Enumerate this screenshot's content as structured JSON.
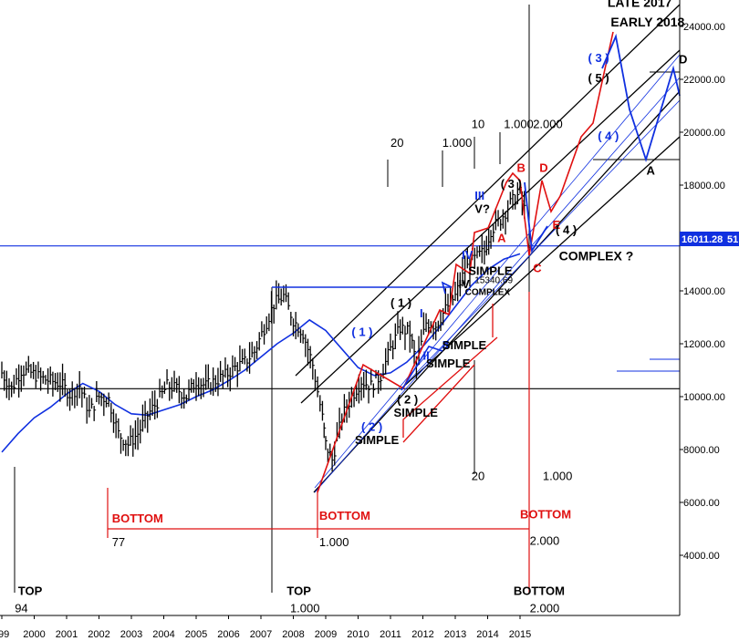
{
  "colors": {
    "price": "#000000",
    "moving_average": "#1030e0",
    "channel": "#000000",
    "red_path": "#e01010",
    "blue_path": "#1030e0",
    "price_tag_bg": "#1030e0",
    "price_tag_text": "#ffffff"
  },
  "price_tag": "16011.28",
  "price_tag_overflow": "51",
  "chart_data": {
    "type": "line",
    "title": "",
    "xlabel": "",
    "ylabel": "",
    "x_tick_labels": [
      "99",
      "2000",
      "2001",
      "2002",
      "2003",
      "2004",
      "2005",
      "2006",
      "2007",
      "2008",
      "2009",
      "2010",
      "2011",
      "2012",
      "2013",
      "2014",
      "2015"
    ],
    "y_tick_labels": [
      "24000.00",
      "22000.00",
      "20000.00",
      "18000.00",
      "16000.00",
      "14000.00",
      "12000.00",
      "10000.00",
      "8000.00",
      "6000.00",
      "4000.00"
    ],
    "ylim": [
      2000,
      25500
    ],
    "xlim": [
      1998.95,
      2020.0
    ],
    "grid": false,
    "series": [
      {
        "type": "ohlc",
        "x": [
          1999.0,
          1999.3,
          1999.6,
          1999.9,
          2000.2,
          2000.5,
          2000.8,
          2001.1,
          2001.4,
          2001.7,
          2002.0,
          2002.3,
          2002.6,
          2002.9,
          2003.2,
          2003.5,
          2003.8,
          2004.1,
          2004.4,
          2004.7,
          2005.0,
          2005.3,
          2005.6,
          2005.9,
          2006.2,
          2006.5,
          2006.8,
          2007.1,
          2007.4,
          2007.7,
          2008.0,
          2008.3,
          2008.6,
          2008.9,
          2009.0,
          2009.2,
          2009.5,
          2009.8,
          2010.1,
          2010.4,
          2010.7,
          2011.0,
          2011.3,
          2011.6,
          2011.8,
          2012.1,
          2012.4,
          2012.7,
          2013.0,
          2013.3,
          2013.6,
          2013.9,
          2014.1,
          2014.4,
          2014.7,
          2015.0,
          2015.2
        ],
        "values": [
          10900,
          10300,
          11000,
          10900,
          10700,
          10600,
          10500,
          10100,
          10400,
          9400,
          10000,
          9900,
          8600,
          8200,
          8600,
          9300,
          9800,
          10400,
          10300,
          10000,
          10600,
          10400,
          10600,
          10800,
          11100,
          11300,
          11700,
          12600,
          13500,
          13800,
          12900,
          12400,
          11200,
          9200,
          8200,
          7600,
          9200,
          10000,
          10600,
          10400,
          10800,
          11800,
          12600,
          12400,
          11200,
          12800,
          12700,
          13300,
          13800,
          14800,
          15200,
          15500,
          16300,
          16700,
          17300,
          17700,
          16800
        ]
      },
      {
        "name": "",
        "type": "moving_average",
        "x": [
          1999.0,
          1999.5,
          2000.0,
          2000.5,
          2001.0,
          2001.5,
          2002.0,
          2002.5,
          2003.0,
          2003.5,
          2004.0,
          2004.5,
          2005.0,
          2005.5,
          2006.0,
          2006.5,
          2007.0,
          2007.5,
          2008.0,
          2008.5,
          2009.0,
          2009.5,
          2010.0,
          2010.5,
          2011.0,
          2011.5,
          2012.0,
          2012.5,
          2013.0,
          2013.5,
          2014.0,
          2014.5,
          2015.0
        ],
        "values": [
          7900,
          8600,
          9200,
          9600,
          10100,
          10500,
          10200,
          9700,
          9350,
          9300,
          9500,
          9700,
          10000,
          10250,
          10600,
          11000,
          11500,
          12000,
          12400,
          12900,
          12500,
          11800,
          11100,
          10800,
          10900,
          11300,
          11900,
          12600,
          13400,
          14200,
          14800,
          15200,
          15400
        ]
      }
    ],
    "annotations": [
      {
        "text": "LATE 2017",
        "x": 2017.7,
        "y": 24750,
        "color": "#000000"
      },
      {
        "text": "EARLY 2018",
        "x": 2017.8,
        "y": 24000,
        "color": "#000000"
      },
      {
        "text": "( 3 )",
        "x": 2017.1,
        "y": 22650,
        "color": "#1030e0"
      },
      {
        "text": "( 5 )",
        "x": 2017.1,
        "y": 21900,
        "color": "#000000"
      },
      {
        "text": "( 4 )",
        "x": 2017.4,
        "y": 19700,
        "color": "#1030e0"
      },
      {
        "text": "D",
        "x": 2019.9,
        "y": 22600,
        "color": "#000000"
      },
      {
        "text": "A",
        "x": 2018.9,
        "y": 18400,
        "color": "#000000"
      },
      {
        "text": "20",
        "x": 2011.0,
        "y": 19450,
        "color": "#000000"
      },
      {
        "text": "1.000",
        "x": 2012.6,
        "y": 19450,
        "color": "#000000"
      },
      {
        "text": "10",
        "x": 2013.5,
        "y": 20150,
        "color": "#000000"
      },
      {
        "text": "1.000",
        "x": 2014.5,
        "y": 20150,
        "color": "#000000"
      },
      {
        "text": "2.000",
        "x": 2015.4,
        "y": 20150,
        "color": "#000000"
      },
      {
        "text": "( 3 )",
        "x": 2014.4,
        "y": 17900,
        "color": "#000000"
      },
      {
        "text": "B",
        "x": 2014.9,
        "y": 18500,
        "color": "#e01010"
      },
      {
        "text": "D",
        "x": 2015.6,
        "y": 18500,
        "color": "#e01010"
      },
      {
        "text": "III",
        "x": 2013.6,
        "y": 17450,
        "color": "#1030e0"
      },
      {
        "text": "V?",
        "x": 2013.6,
        "y": 16950,
        "color": "#000000"
      },
      {
        "text": "E",
        "x": 2016.0,
        "y": 16350,
        "color": "#e01010"
      },
      {
        "text": "A",
        "x": 2014.3,
        "y": 15850,
        "color": "#e01010"
      },
      {
        "text": "( 4 )",
        "x": 2016.1,
        "y": 16150,
        "color": "#000000"
      },
      {
        "text": "COMPLEX ?",
        "x": 2016.2,
        "y": 15150,
        "color": "#000000"
      },
      {
        "text": "C",
        "x": 2015.4,
        "y": 14700,
        "color": "#e01010"
      },
      {
        "text": "IV",
        "x": 2013.2,
        "y": 15200,
        "color": "#1030e0"
      },
      {
        "text": "SIMPLE",
        "x": 2013.4,
        "y": 14600,
        "color": "#000000"
      },
      {
        "text": "15340.69",
        "x": 2013.6,
        "y": 14300,
        "color": "#000000"
      },
      {
        "text": "IV",
        "x": 2013.1,
        "y": 14100,
        "color": "#000000"
      },
      {
        "text": "COMPLEX",
        "x": 2013.3,
        "y": 13850,
        "color": "#000000"
      },
      {
        "text": "( 1 )",
        "x": 2011.0,
        "y": 13400,
        "color": "#000000"
      },
      {
        "text": "( 1 )",
        "x": 2009.8,
        "y": 12300,
        "color": "#1030e0"
      },
      {
        "text": "I",
        "x": 2011.9,
        "y": 13000,
        "color": "#1030e0"
      },
      {
        "text": "II",
        "x": 2012.6,
        "y": 11800,
        "color": "#1030e0"
      },
      {
        "text": "II",
        "x": 2012.0,
        "y": 11400,
        "color": "#1030e0"
      },
      {
        "text": "SIMPLE",
        "x": 2012.6,
        "y": 11800,
        "color": "#000000"
      },
      {
        "text": "SIMPLE",
        "x": 2012.1,
        "y": 11100,
        "color": "#000000"
      },
      {
        "text": "( 2 )",
        "x": 2011.2,
        "y": 9750,
        "color": "#000000"
      },
      {
        "text": "SIMPLE",
        "x": 2011.1,
        "y": 9250,
        "color": "#000000"
      },
      {
        "text": "( 2 )",
        "x": 2010.1,
        "y": 8700,
        "color": "#1030e0"
      },
      {
        "text": "SIMPLE",
        "x": 2009.9,
        "y": 8200,
        "color": "#000000"
      },
      {
        "text": "20",
        "x": 2013.5,
        "y": 6850,
        "color": "#000000"
      },
      {
        "text": "1.000",
        "x": 2015.7,
        "y": 6850,
        "color": "#000000"
      },
      {
        "text": "BOTTOM",
        "x": 2002.4,
        "y": 5250,
        "color": "#e01010"
      },
      {
        "text": "77",
        "x": 2002.4,
        "y": 4350,
        "color": "#000000"
      },
      {
        "text": "BOTTOM",
        "x": 2008.8,
        "y": 5350,
        "color": "#e01010"
      },
      {
        "text": "1.000",
        "x": 2008.8,
        "y": 4350,
        "color": "#000000"
      },
      {
        "text": "BOTTOM",
        "x": 2015.0,
        "y": 5400,
        "color": "#e01010"
      },
      {
        "text": "2.000",
        "x": 2015.3,
        "y": 4400,
        "color": "#000000"
      },
      {
        "text": "TOP",
        "x": 1999.5,
        "y": 2500,
        "color": "#000000"
      },
      {
        "text": "94",
        "x": 1999.4,
        "y": 1850,
        "color": "#000000"
      },
      {
        "text": "TOP",
        "x": 2007.8,
        "y": 2500,
        "color": "#000000"
      },
      {
        "text": "1.000",
        "x": 2007.9,
        "y": 1850,
        "color": "#000000"
      },
      {
        "text": "BOTTOM",
        "x": 2014.8,
        "y": 2500,
        "color": "#000000"
      },
      {
        "text": "2.000",
        "x": 2015.3,
        "y": 1850,
        "color": "#000000"
      }
    ]
  }
}
